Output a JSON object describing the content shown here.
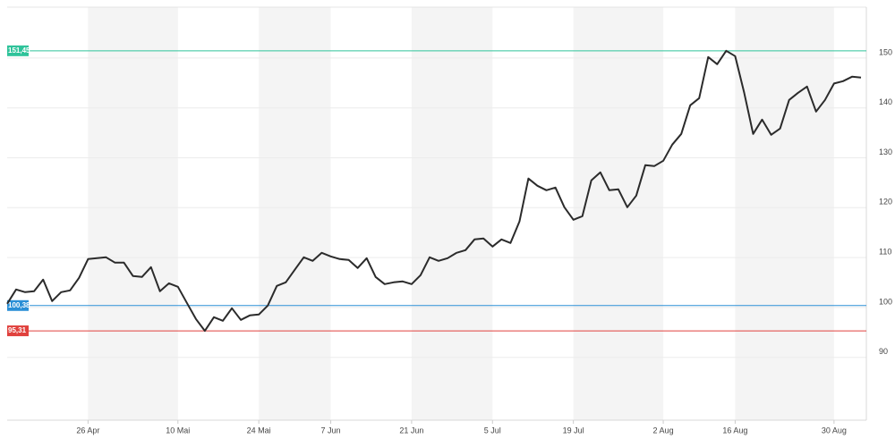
{
  "chart_data": {
    "type": "line",
    "categories": [
      null,
      null,
      null,
      null,
      null,
      null,
      null,
      null,
      null,
      "26 Apr",
      null,
      null,
      null,
      null,
      null,
      null,
      null,
      null,
      null,
      "10 Mai",
      null,
      null,
      null,
      null,
      null,
      null,
      null,
      null,
      "24 Mai",
      null,
      null,
      null,
      null,
      null,
      null,
      null,
      "7 Jun",
      null,
      null,
      null,
      null,
      null,
      null,
      null,
      null,
      "21 Jun",
      null,
      null,
      null,
      null,
      null,
      null,
      null,
      null,
      "5 Jul",
      null,
      null,
      null,
      null,
      null,
      null,
      null,
      null,
      "19 Jul",
      null,
      null,
      null,
      null,
      null,
      null,
      null,
      null,
      null,
      "2 Aug",
      null,
      null,
      null,
      null,
      null,
      null,
      null,
      "16 Aug",
      null,
      null,
      null,
      null,
      null,
      null,
      null,
      null,
      null,
      null,
      "30 Aug",
      null,
      null,
      null
    ],
    "values": [
      100.73,
      103.6,
      103.06,
      103.24,
      105.57,
      101.27,
      103.06,
      103.42,
      105.93,
      109.69,
      109.87,
      110.05,
      108.98,
      108.98,
      106.29,
      106.11,
      108.08,
      103.24,
      104.84,
      104.14,
      100.91,
      97.69,
      95.31,
      98.04,
      97.33,
      99.84,
      97.51,
      98.41,
      98.58,
      100.38,
      104.32,
      105.04,
      107.54,
      110.05,
      109.34,
      110.95,
      110.23,
      109.69,
      109.51,
      107.9,
      109.87,
      106.11,
      104.68,
      105.04,
      105.21,
      104.68,
      106.47,
      110.05,
      109.34,
      109.87,
      110.95,
      111.49,
      113.64,
      113.82,
      112.2,
      113.64,
      112.92,
      117.22,
      125.84,
      124.4,
      123.49,
      124.03,
      120.09,
      117.58,
      118.29,
      125.46,
      127.08,
      123.49,
      123.67,
      120.09,
      122.42,
      128.51,
      128.33,
      129.41,
      132.63,
      134.78,
      140.52,
      141.95,
      150.2,
      148.76,
      151.45,
      150.37,
      143.03,
      134.78,
      137.65,
      134.6,
      135.86,
      141.59,
      143.03,
      144.28,
      139.26,
      141.59,
      144.9,
      145.36,
      146.25,
      146.07
    ],
    "color": "#2b2b2b",
    "ylim": [
      77.4,
      160.2
    ],
    "yticks": [
      90,
      100,
      110,
      120,
      130,
      140,
      150
    ],
    "grid": true,
    "reference_lines": [
      {
        "value": 151.45,
        "label": "151,45",
        "color": "#2fc39a"
      },
      {
        "value": 100.38,
        "label": "100,38",
        "color": "#2b8fd6"
      },
      {
        "value": 95.31,
        "label": "95,31",
        "color": "#e0413d"
      }
    ]
  }
}
